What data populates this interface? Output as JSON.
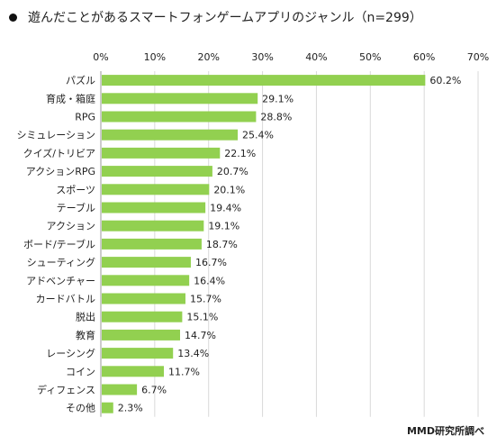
{
  "title": "遊んだことがあるスマートフォンゲームアプリのジャンル（n=299）",
  "source": "MMD研究所調べ",
  "colors": {
    "bar": "#92d050",
    "grid": "#d9d9d9",
    "axis": "#999999"
  },
  "chart_data": {
    "type": "bar",
    "orientation": "horizontal",
    "categories": [
      "パズル",
      "育成・箱庭",
      "RPG",
      "シミュレーション",
      "クイズ/トリビア",
      "アクションRPG",
      "スポーツ",
      "テーブル",
      "アクション",
      "ボード/テーブル",
      "シューティング",
      "アドベンチャー",
      "カードバトル",
      "脱出",
      "教育",
      "レーシング",
      "コイン",
      "ディフェンス",
      "その他"
    ],
    "values": [
      60.2,
      29.1,
      28.8,
      25.4,
      22.1,
      20.7,
      20.1,
      19.4,
      19.1,
      18.7,
      16.7,
      16.4,
      15.7,
      15.1,
      14.7,
      13.4,
      11.7,
      6.7,
      2.3
    ],
    "value_labels": [
      "60.2%",
      "29.1%",
      "28.8%",
      "25.4%",
      "22.1%",
      "20.7%",
      "20.1%",
      "19.4%",
      "19.1%",
      "18.7%",
      "16.7%",
      "16.4%",
      "15.7%",
      "15.1%",
      "14.7%",
      "13.4%",
      "11.7%",
      "6.7%",
      "2.3%"
    ],
    "xlim": [
      0,
      70
    ],
    "xticks": [
      "0%",
      "10%",
      "20%",
      "30%",
      "40%",
      "50%",
      "60%",
      "70%"
    ],
    "grid": true
  }
}
